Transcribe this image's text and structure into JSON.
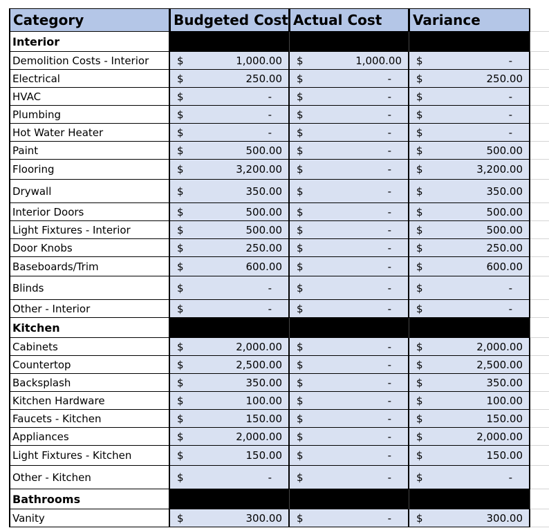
{
  "header": {
    "category": "Category",
    "budgeted": "Budgeted Cost",
    "actual": "Actual Cost",
    "variance": "Variance"
  },
  "rows": [
    {
      "type": "section",
      "label": "Interior"
    },
    {
      "type": "item",
      "label": "Demolition Costs - Interior",
      "budgeted": "1,000.00",
      "actual": "1,000.00",
      "variance": "-"
    },
    {
      "type": "item",
      "label": "Electrical",
      "budgeted": "250.00",
      "actual": "-",
      "variance": "250.00"
    },
    {
      "type": "item",
      "label": "HVAC",
      "budgeted": "-",
      "actual": "-",
      "variance": "-"
    },
    {
      "type": "item",
      "label": "Plumbing",
      "budgeted": "-",
      "actual": "-",
      "variance": "-"
    },
    {
      "type": "item",
      "label": "Hot Water Heater",
      "budgeted": "-",
      "actual": "-",
      "variance": "-"
    },
    {
      "type": "item",
      "label": "Paint",
      "budgeted": "500.00",
      "actual": "-",
      "variance": "500.00"
    },
    {
      "type": "item",
      "label": "Flooring",
      "budgeted": "3,200.00",
      "actual": "-",
      "variance": "3,200.00"
    },
    {
      "type": "item",
      "label": "Drywall",
      "budgeted": "350.00",
      "actual": "-",
      "variance": "350.00"
    },
    {
      "type": "item",
      "label": "Interior Doors",
      "budgeted": "500.00",
      "actual": "-",
      "variance": "500.00"
    },
    {
      "type": "item",
      "label": "Light Fixtures - Interior",
      "budgeted": "500.00",
      "actual": "-",
      "variance": "500.00"
    },
    {
      "type": "item",
      "label": "Door Knobs",
      "budgeted": "250.00",
      "actual": "-",
      "variance": "250.00"
    },
    {
      "type": "item",
      "label": "Baseboards/Trim",
      "budgeted": "600.00",
      "actual": "-",
      "variance": "600.00"
    },
    {
      "type": "item",
      "label": "Blinds",
      "budgeted": "-",
      "actual": "-",
      "variance": "-"
    },
    {
      "type": "item",
      "label": "Other - Interior",
      "budgeted": "-",
      "actual": "-",
      "variance": "-"
    },
    {
      "type": "section",
      "label": "Kitchen"
    },
    {
      "type": "item",
      "label": "Cabinets",
      "budgeted": "2,000.00",
      "actual": "-",
      "variance": "2,000.00"
    },
    {
      "type": "item",
      "label": "Countertop",
      "budgeted": "2,500.00",
      "actual": "-",
      "variance": "2,500.00"
    },
    {
      "type": "item",
      "label": "Backsplash",
      "budgeted": "350.00",
      "actual": "-",
      "variance": "350.00"
    },
    {
      "type": "item",
      "label": "Kitchen Hardware",
      "budgeted": "100.00",
      "actual": "-",
      "variance": "100.00"
    },
    {
      "type": "item",
      "label": "Faucets - Kitchen",
      "budgeted": "150.00",
      "actual": "-",
      "variance": "150.00"
    },
    {
      "type": "item",
      "label": "Appliances",
      "budgeted": "2,000.00",
      "actual": "-",
      "variance": "2,000.00"
    },
    {
      "type": "item",
      "label": "Light Fixtures - Kitchen",
      "budgeted": "150.00",
      "actual": "-",
      "variance": "150.00"
    },
    {
      "type": "item",
      "label": "Other - Kitchen",
      "budgeted": "-",
      "actual": "-",
      "variance": "-"
    },
    {
      "type": "section",
      "label": "Bathrooms"
    },
    {
      "type": "item",
      "label": "Vanity",
      "budgeted": "300.00",
      "actual": "-",
      "variance": "300.00"
    }
  ],
  "currency_symbol": "$",
  "colors": {
    "header_fill": "#b4c6e7",
    "value_fill": "#d9e1f2",
    "section_fill": "#000000",
    "gridline": "#d4d4d4"
  }
}
